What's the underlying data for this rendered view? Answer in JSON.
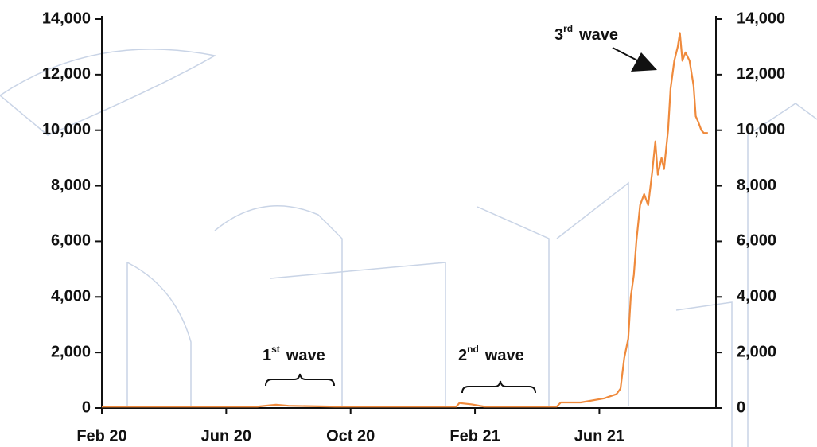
{
  "chart_data": {
    "type": "line",
    "x": [
      0,
      5.0,
      5.6,
      6.0,
      7.5,
      11.4,
      11.5,
      11.9,
      12.3,
      14.63,
      14.76,
      15.4,
      16.16,
      16.55,
      16.68,
      16.8,
      16.93,
      17.01,
      17.11,
      17.19,
      17.31,
      17.44,
      17.57,
      17.7,
      17.8,
      17.88,
      18.0,
      18.08,
      18.21,
      18.29,
      18.41,
      18.52,
      18.59,
      18.67,
      18.77,
      18.9,
      19.03,
      19.1,
      19.18,
      19.28,
      19.36,
      19.49
    ],
    "series": [
      {
        "color": "#ef8a3c",
        "values": [
          50,
          50,
          120,
          80,
          50,
          50,
          180,
          130,
          50,
          50,
          200,
          200,
          350,
          500,
          700,
          1800,
          2500,
          4000,
          4800,
          6000,
          7300,
          7700,
          7300,
          8500,
          9600,
          8400,
          9000,
          8600,
          10000,
          11500,
          12500,
          13000,
          13500,
          12500,
          12800,
          12500,
          11600,
          10500,
          10300,
          10000,
          9900,
          9900
        ]
      }
    ],
    "xlim": [
      0,
      19.75
    ],
    "xticks": [
      {
        "value": 0,
        "label": "Feb 20"
      },
      {
        "value": 4,
        "label": "Jun 20"
      },
      {
        "value": 8,
        "label": "Oct 20"
      },
      {
        "value": 12,
        "label": "Feb 21"
      },
      {
        "value": 16,
        "label": "Jun 21"
      }
    ],
    "ylim": [
      0,
      14000
    ],
    "yticks": [
      0,
      {
        "value": 2000,
        "label": "2,000"
      },
      {
        "value": 4000,
        "label": "4,000"
      },
      {
        "value": 6000,
        "label": "6,000"
      },
      {
        "value": 8000,
        "label": "8,000"
      },
      {
        "value": 10000,
        "label": "10,000"
      },
      {
        "value": 12000,
        "label": "12,000"
      },
      {
        "value": 14000,
        "label": "14,000"
      }
    ],
    "y2lim": [
      0,
      14000
    ],
    "y2ticks": [
      0,
      {
        "value": 2000,
        "label": "2,000"
      },
      {
        "value": 4000,
        "label": "4,000"
      },
      {
        "value": 6000,
        "label": "6,000"
      },
      {
        "value": 8000,
        "label": "8,000"
      },
      {
        "value": 10000,
        "label": "10,000"
      },
      {
        "value": 12000,
        "label": "12,000"
      },
      {
        "value": 14000,
        "label": "14,000"
      }
    ],
    "annotations": [
      {
        "number": "1",
        "suffix": "st",
        "text": "wave"
      },
      {
        "number": "2",
        "suffix": "nd",
        "text": "wave"
      },
      {
        "number": "3",
        "suffix": "rd",
        "text": "wave"
      }
    ]
  }
}
